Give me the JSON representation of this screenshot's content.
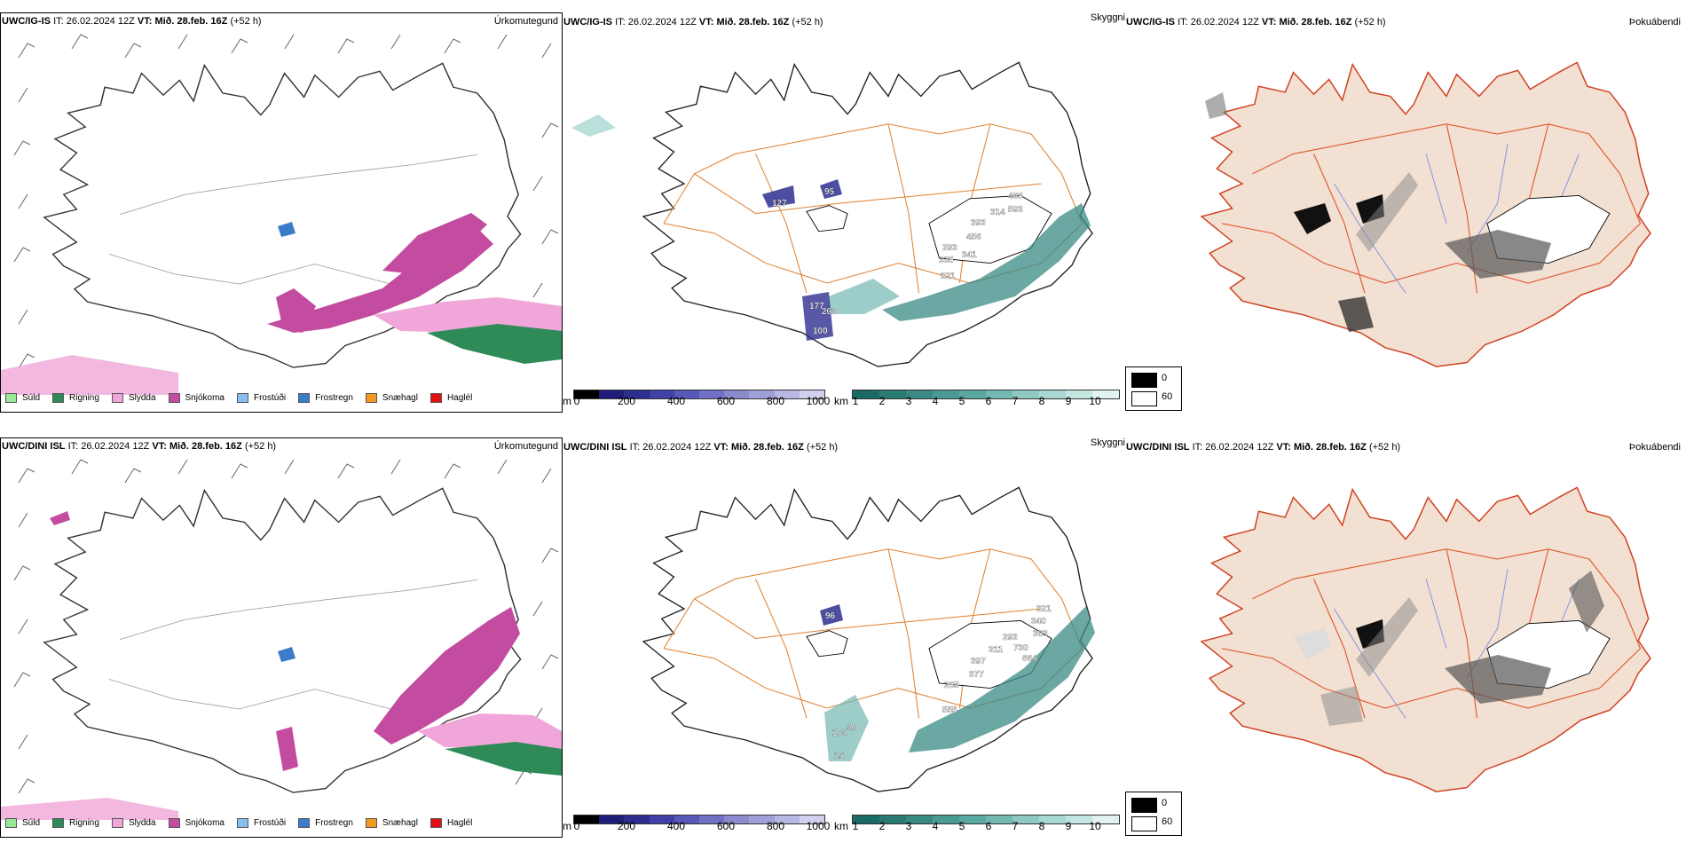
{
  "rows": [
    {
      "model": "UWC/IG-IS",
      "it_label": "IT:",
      "it_value": "26.02.2024 12Z",
      "vt_label": "VT:",
      "vt_value": "Mið. 28.feb. 16Z",
      "lead": "(+52 h)",
      "p1_title": "Úrkomutegund",
      "p2_title": "Skyggni",
      "p3_title": "Þokuábendi",
      "ceiling_labels": [
        "127",
        "95",
        "393",
        "456",
        "293",
        "335",
        "341",
        "321",
        "314",
        "593",
        "488",
        "177",
        "263",
        "100"
      ],
      "vis_labels": []
    },
    {
      "model": "UWC/DINI ISL",
      "it_label": "IT:",
      "it_value": "26.02.2024 12Z",
      "vt_label": "VT:",
      "vt_value": "Mið. 28.feb. 16Z",
      "lead": "(+52 h)",
      "p1_title": "Úrkomutegund",
      "p2_title": "Skyggni",
      "p3_title": "Þokuábendi",
      "ceiling_labels": [
        "96",
        "321",
        "340",
        "303",
        "293",
        "730",
        "864",
        "311",
        "397",
        "377",
        "265",
        "555",
        "174",
        "40",
        "15"
      ],
      "vis_labels": []
    }
  ],
  "precip_legend": [
    {
      "label": "Súld",
      "color": "#98e898"
    },
    {
      "label": "Rigning",
      "color": "#2e8b57"
    },
    {
      "label": "Slydda",
      "color": "#f0a6d8"
    },
    {
      "label": "Snjókoma",
      "color": "#c44ca0"
    },
    {
      "label": "Frostúði",
      "color": "#88bff0"
    },
    {
      "label": "Frostregn",
      "color": "#3a7cc8"
    },
    {
      "label": "Snæhagl",
      "color": "#f09a20"
    },
    {
      "label": "Haglél",
      "color": "#e01010"
    }
  ],
  "ceiling_scale": {
    "unit": "m",
    "ticks": [
      "0",
      "200",
      "400",
      "600",
      "800",
      "1000"
    ],
    "colors": [
      "#000000",
      "#1e1e78",
      "#2e2e90",
      "#4040a8",
      "#5858b8",
      "#7070c4",
      "#8a8acc",
      "#a0a0d8",
      "#b8b8e4",
      "#d0d0ec"
    ]
  },
  "visibility_scale": {
    "unit": "km",
    "ticks": [
      "1",
      "2",
      "3",
      "4",
      "5",
      "6",
      "7",
      "8",
      "9",
      "10"
    ],
    "colors": [
      "#1a6b66",
      "#2a7a74",
      "#3a8a84",
      "#4a9a94",
      "#5aa8a2",
      "#74b8b2",
      "#8ec8c2",
      "#a8d8d2",
      "#c4e6e2",
      "#e2f2f0"
    ]
  },
  "fog_legend": [
    {
      "label": "0",
      "color": "#000000"
    },
    {
      "label": "60",
      "color": "#ffffff"
    }
  ]
}
